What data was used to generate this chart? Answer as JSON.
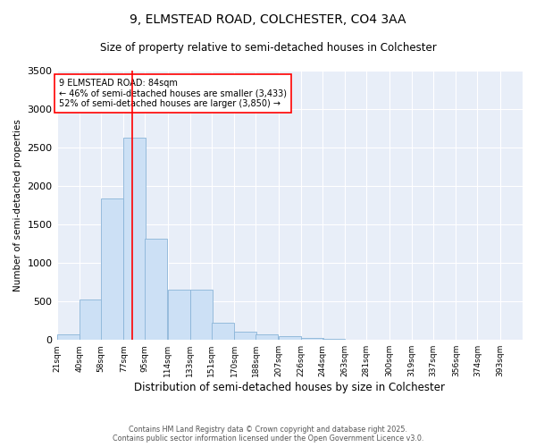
{
  "title_line1": "9, ELMSTEAD ROAD, COLCHESTER, CO4 3AA",
  "title_line2": "Size of property relative to semi-detached houses in Colchester",
  "xlabel": "Distribution of semi-detached houses by size in Colchester",
  "ylabel": "Number of semi-detached properties",
  "footer_line1": "Contains HM Land Registry data © Crown copyright and database right 2025.",
  "footer_line2": "Contains public sector information licensed under the Open Government Licence v3.0.",
  "annotation_line1": "9 ELMSTEAD ROAD: 84sqm",
  "annotation_line2": "← 46% of semi-detached houses are smaller (3,433)",
  "annotation_line3": "52% of semi-detached houses are larger (3,850) →",
  "bar_color": "#cce0f5",
  "bar_edge_color": "#8ab4d8",
  "redline_color": "red",
  "bg_color": "#e8eef8",
  "categories": [
    "21sqm",
    "40sqm",
    "58sqm",
    "77sqm",
    "95sqm",
    "114sqm",
    "133sqm",
    "151sqm",
    "170sqm",
    "188sqm",
    "207sqm",
    "226sqm",
    "244sqm",
    "263sqm",
    "281sqm",
    "300sqm",
    "319sqm",
    "337sqm",
    "356sqm",
    "374sqm",
    "393sqm"
  ],
  "bin_left_edges": [
    21,
    40,
    58,
    77,
    95,
    114,
    133,
    151,
    170,
    188,
    207,
    226,
    244,
    263,
    281,
    300,
    319,
    337,
    356,
    374,
    393
  ],
  "bin_width": 19,
  "values": [
    75,
    530,
    1840,
    2630,
    1320,
    650,
    650,
    220,
    110,
    75,
    50,
    20,
    10,
    5,
    3,
    2,
    1,
    1,
    0,
    0,
    0
  ],
  "ylim": [
    0,
    3500
  ],
  "yticks": [
    0,
    500,
    1000,
    1500,
    2000,
    2500,
    3000,
    3500
  ],
  "grid_color": "#ffffff",
  "annotation_box_facecolor": "white",
  "annotation_box_edgecolor": "red",
  "redline_x": 84
}
